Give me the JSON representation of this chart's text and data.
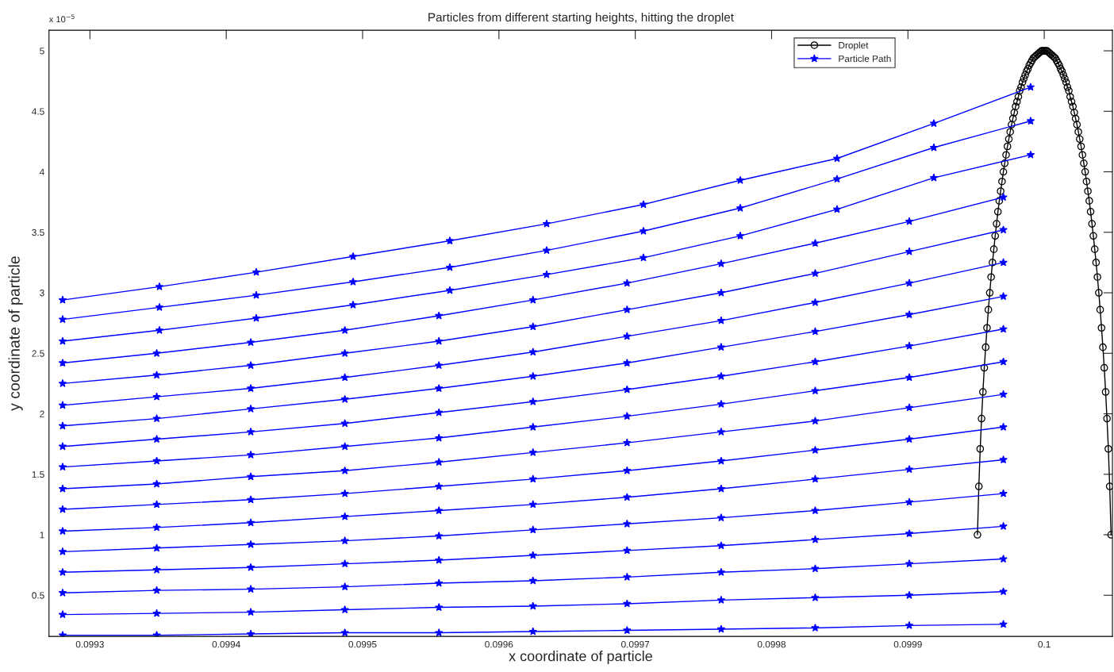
{
  "chart_data": {
    "type": "line",
    "title": "Particles from different starting heights, hitting the droplet",
    "xlabel": "x coordinate of particle",
    "ylabel": "y coordinate of particle",
    "annotations": [
      "x 10$^{−5}$"
    ],
    "xlim": [
      0.09927,
      0.10005
    ],
    "xticks": [
      0.0993,
      0.0994,
      0.0995,
      0.0996,
      0.0997,
      0.0998,
      0.0999,
      0.1
    ],
    "ylim": [
      0.16,
      5.17
    ],
    "yticks": [
      0.5,
      1,
      1.5,
      2,
      2.5,
      3,
      3.5,
      4,
      4.5,
      5
    ],
    "grid": false,
    "legend": "top right",
    "x": [
      0.09928,
      0.099349,
      0.099418,
      0.099487,
      0.099556,
      0.099625,
      0.099694,
      0.099763,
      0.099832,
      0.099901,
      0.09997
    ],
    "series": [
      {
        "name": "Droplet",
        "color": "#000000",
        "marker": "circle",
        "x": [
          0.099951,
          0.099952,
          0.099953,
          0.099954,
          0.099955,
          0.099956,
          0.099957,
          0.099958,
          0.099959,
          0.09996,
          0.099961,
          0.099962,
          0.099963,
          0.099964,
          0.099965,
          0.099966,
          0.099967,
          0.099968,
          0.099969,
          0.09997,
          0.099971,
          0.099972,
          0.099973,
          0.099974,
          0.099975,
          0.099976,
          0.099977,
          0.099978,
          0.099979,
          0.09998,
          0.099981,
          0.099982,
          0.099983,
          0.099984,
          0.099985,
          0.099986,
          0.099987,
          0.099988,
          0.099989,
          0.09999,
          0.099991,
          0.099992,
          0.099993,
          0.099994,
          0.099995,
          0.099996,
          0.099997,
          0.099998,
          0.099999,
          0.1,
          0.100001,
          0.100002,
          0.100003,
          0.100004,
          0.100005,
          0.100006,
          0.100007,
          0.100008,
          0.100009,
          0.10001,
          0.100011,
          0.100012,
          0.100013,
          0.100014,
          0.100015,
          0.100016,
          0.100017,
          0.100018,
          0.100019,
          0.10002,
          0.100021,
          0.100022,
          0.100023,
          0.100024,
          0.100025,
          0.100026,
          0.100027,
          0.100028,
          0.100029,
          0.10003,
          0.100031,
          0.100032,
          0.100033,
          0.100034,
          0.100035,
          0.100036,
          0.100037,
          0.100038,
          0.100039,
          0.10004,
          0.100041,
          0.100042,
          0.100043,
          0.100044,
          0.100045,
          0.100046,
          0.100047,
          0.100048,
          0.100049
        ],
        "values": [
          1.0,
          1.4,
          1.71,
          1.96,
          2.18,
          2.38,
          2.55,
          2.71,
          2.86,
          3.0,
          3.13,
          3.25,
          3.36,
          3.47,
          3.57,
          3.67,
          3.76,
          3.84,
          3.92,
          4.0,
          4.07,
          4.14,
          4.21,
          4.27,
          4.33,
          4.39,
          4.44,
          4.49,
          4.54,
          4.58,
          4.62,
          4.67,
          4.7,
          4.74,
          4.77,
          4.8,
          4.83,
          4.85,
          4.88,
          4.9,
          4.92,
          4.94,
          4.95,
          4.96,
          4.97,
          4.98,
          4.99,
          5.0,
          5.0,
          5.0,
          5.0,
          5.0,
          4.99,
          4.98,
          4.97,
          4.96,
          4.95,
          4.94,
          4.92,
          4.9,
          4.88,
          4.85,
          4.83,
          4.8,
          4.77,
          4.74,
          4.7,
          4.67,
          4.62,
          4.58,
          4.54,
          4.49,
          4.44,
          4.39,
          4.33,
          4.27,
          4.21,
          4.14,
          4.07,
          4.0,
          3.92,
          3.84,
          3.76,
          3.67,
          3.57,
          3.47,
          3.36,
          3.25,
          3.13,
          3.0,
          2.86,
          2.71,
          2.55,
          2.38,
          2.18,
          1.96,
          1.71,
          1.4,
          1.0
        ]
      },
      {
        "name": "Particle Path",
        "color": "#0000ff",
        "marker": "star",
        "x": [
          0.09928,
          0.099351,
          0.099422,
          0.099493,
          0.099564,
          0.099635,
          0.099706,
          0.099777,
          0.099848,
          0.099919,
          0.09999
        ],
        "values": [
          2.94,
          3.05,
          3.17,
          3.3,
          3.43,
          3.57,
          3.73,
          3.93,
          4.11,
          4.4,
          4.7
        ]
      },
      {
        "color": "#0000ff",
        "marker": "star",
        "x": [
          0.09928,
          0.099351,
          0.099422,
          0.099493,
          0.099564,
          0.099635,
          0.099706,
          0.099777,
          0.099848,
          0.099919,
          0.09999
        ],
        "values": [
          2.78,
          2.88,
          2.98,
          3.09,
          3.21,
          3.35,
          3.51,
          3.7,
          3.94,
          4.2,
          4.42
        ]
      },
      {
        "color": "#0000ff",
        "marker": "star",
        "x": [
          0.09928,
          0.099351,
          0.099422,
          0.099493,
          0.099564,
          0.099635,
          0.099706,
          0.099777,
          0.099848,
          0.099919,
          0.09999
        ],
        "values": [
          2.6,
          2.69,
          2.79,
          2.9,
          3.02,
          3.15,
          3.29,
          3.47,
          3.69,
          3.95,
          4.14
        ]
      },
      {
        "color": "#0000ff",
        "marker": "star",
        "values": [
          2.42,
          2.5,
          2.59,
          2.69,
          2.81,
          2.94,
          3.08,
          3.24,
          3.41,
          3.59,
          3.79
        ]
      },
      {
        "color": "#0000ff",
        "marker": "star",
        "values": [
          2.25,
          2.32,
          2.4,
          2.5,
          2.6,
          2.72,
          2.86,
          3.0,
          3.16,
          3.34,
          3.52
        ]
      },
      {
        "color": "#0000ff",
        "marker": "star",
        "values": [
          2.07,
          2.14,
          2.21,
          2.3,
          2.4,
          2.51,
          2.64,
          2.77,
          2.92,
          3.08,
          3.25
        ]
      },
      {
        "color": "#0000ff",
        "marker": "star",
        "values": [
          1.9,
          1.96,
          2.04,
          2.12,
          2.21,
          2.31,
          2.42,
          2.55,
          2.68,
          2.82,
          2.97
        ]
      },
      {
        "color": "#0000ff",
        "marker": "star",
        "values": [
          1.73,
          1.79,
          1.85,
          1.92,
          2.01,
          2.1,
          2.2,
          2.31,
          2.43,
          2.56,
          2.7
        ]
      },
      {
        "color": "#0000ff",
        "marker": "star",
        "values": [
          1.56,
          1.61,
          1.66,
          1.73,
          1.8,
          1.89,
          1.98,
          2.08,
          2.19,
          2.3,
          2.43
        ]
      },
      {
        "color": "#0000ff",
        "marker": "star",
        "values": [
          1.38,
          1.42,
          1.48,
          1.53,
          1.6,
          1.68,
          1.76,
          1.85,
          1.94,
          2.05,
          2.16
        ]
      },
      {
        "color": "#0000ff",
        "marker": "star",
        "values": [
          1.21,
          1.25,
          1.29,
          1.34,
          1.4,
          1.46,
          1.53,
          1.61,
          1.7,
          1.79,
          1.89
        ]
      },
      {
        "color": "#0000ff",
        "marker": "star",
        "values": [
          1.03,
          1.06,
          1.1,
          1.15,
          1.2,
          1.25,
          1.31,
          1.38,
          1.46,
          1.54,
          1.62
        ]
      },
      {
        "color": "#0000ff",
        "marker": "star",
        "values": [
          0.86,
          0.89,
          0.92,
          0.95,
          0.99,
          1.04,
          1.09,
          1.14,
          1.2,
          1.27,
          1.34
        ]
      },
      {
        "color": "#0000ff",
        "marker": "star",
        "values": [
          0.69,
          0.71,
          0.73,
          0.76,
          0.79,
          0.83,
          0.87,
          0.91,
          0.96,
          1.01,
          1.07
        ]
      },
      {
        "color": "#0000ff",
        "marker": "star",
        "values": [
          0.52,
          0.54,
          0.55,
          0.57,
          0.6,
          0.62,
          0.65,
          0.69,
          0.72,
          0.76,
          0.8
        ]
      },
      {
        "color": "#0000ff",
        "marker": "star",
        "values": [
          0.34,
          0.35,
          0.36,
          0.38,
          0.4,
          0.41,
          0.43,
          0.46,
          0.48,
          0.5,
          0.53
        ]
      },
      {
        "color": "#0000ff",
        "marker": "star",
        "values": [
          0.17,
          0.17,
          0.18,
          0.19,
          0.19,
          0.2,
          0.21,
          0.22,
          0.23,
          0.25,
          0.26
        ]
      }
    ]
  }
}
